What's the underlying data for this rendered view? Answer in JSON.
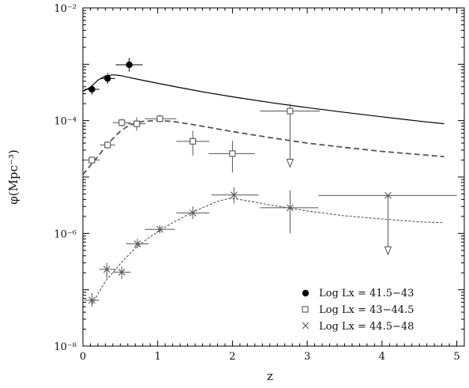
{
  "chart_data": {
    "type": "scatter",
    "title": "",
    "xlabel": "z",
    "ylabel": "φ(Mpc⁻³)",
    "xlim": [
      0,
      5.1
    ],
    "ylim_log10": [
      -8,
      -2
    ],
    "y_scale": "log",
    "x_ticks": [
      "0",
      "1",
      "2",
      "3",
      "4",
      "5"
    ],
    "y_ticks": [
      {
        "exp": -2,
        "text": "10⁻²"
      },
      {
        "exp": -4,
        "text": "10⁻⁴"
      },
      {
        "exp": -6,
        "text": "10⁻⁶"
      },
      {
        "exp": -8,
        "text": "10⁻⁸"
      }
    ],
    "legend_position": "bottom-right",
    "series": [
      {
        "name": "Log Lx = 41.5−43",
        "marker": "filled-circle",
        "color": "#000000",
        "points": [
          {
            "x": 0.12,
            "xerr": [
              0.1,
              0.1
            ],
            "y": 0.00036,
            "yerr": [
              0.00029,
              0.00043
            ]
          },
          {
            "x": 0.33,
            "xerr": [
              0.1,
              0.1
            ],
            "y": 0.00056,
            "yerr": [
              0.00045,
              0.00069
            ]
          },
          {
            "x": 0.62,
            "xerr": [
              0.18,
              0.18
            ],
            "y": 0.00098,
            "yerr": [
              0.00074,
              0.0013
            ]
          }
        ],
        "model": {
          "style": "solid",
          "x": [
            0,
            0.1,
            0.2,
            0.3,
            0.4,
            0.5,
            0.6,
            0.8,
            1.0,
            1.3,
            1.6,
            2.0,
            2.5,
            3.0,
            3.5,
            4.0,
            4.5,
            4.83
          ],
          "y": [
            0.00033,
            0.00039,
            0.00052,
            0.00062,
            0.00065,
            0.00063,
            0.00059,
            0.00052,
            0.00046,
            0.000385,
            0.000325,
            0.000265,
            0.00021,
            0.00017,
            0.00014,
            0.000117,
            9.8e-05,
            8.8e-05
          ]
        }
      },
      {
        "name": "Log Lx = 43−44.5",
        "marker": "open-square",
        "color": "#555555",
        "points": [
          {
            "x": 0.12,
            "xerr": [
              0.1,
              0.1
            ],
            "y": 2e-05,
            "yerr": [
              1.75e-05,
              2.3e-05
            ]
          },
          {
            "x": 0.33,
            "xerr": [
              0.1,
              0.1
            ],
            "y": 3.7e-05,
            "yerr": [
              3.2e-05,
              4.3e-05
            ]
          },
          {
            "x": 0.52,
            "xerr": [
              0.12,
              0.12
            ],
            "y": 9.2e-05,
            "yerr": [
              7.8e-05,
              0.000108
            ]
          },
          {
            "x": 0.72,
            "xerr": [
              0.12,
              0.12
            ],
            "y": 8.8e-05,
            "yerr": [
              6.6e-05,
              0.000115
            ]
          },
          {
            "x": 1.03,
            "xerr": [
              0.2,
              0.22
            ],
            "y": 0.000108,
            "yerr": [
              9.3e-05,
              0.000127
            ]
          },
          {
            "x": 1.47,
            "xerr": [
              0.22,
              0.22
            ],
            "y": 4.3e-05,
            "yerr": [
              2.4e-05,
              6.6e-05
            ]
          },
          {
            "x": 2.0,
            "xerr": [
              0.32,
              0.3
            ],
            "y": 2.6e-05,
            "yerr": [
              1.2e-05,
              4.4e-05
            ]
          },
          {
            "x": 2.77,
            "xerr": [
              0.4,
              0.4
            ],
            "y": 0.000148,
            "yerr": [
              null,
              0.0002
            ],
            "upper_limit": true,
            "arrow_to": 1.5e-05
          }
        ],
        "model": {
          "style": "dashed",
          "x": [
            0,
            0.1,
            0.2,
            0.3,
            0.4,
            0.5,
            0.6,
            0.7,
            0.8,
            1.0,
            1.2,
            1.5,
            2.0,
            2.5,
            3.0,
            3.5,
            4.0,
            4.5,
            4.83
          ],
          "y": [
            1.1e-05,
            1.6e-05,
            2.3e-05,
            3.4e-05,
            4.8e-05,
            6.5e-05,
            8e-05,
            9e-05,
            9.7e-05,
            0.000101,
            9.7e-05,
            8.4e-05,
            6.4e-05,
            5e-05,
            4e-05,
            3.35e-05,
            2.85e-05,
            2.5e-05,
            2.3e-05
          ]
        }
      },
      {
        "name": "Log Lx = 44.5−48",
        "marker": "cross",
        "color": "#555555",
        "points": [
          {
            "x": 0.12,
            "xerr": [
              0.1,
              0.1
            ],
            "y": 6.5e-08,
            "yerr": [
              5e-08,
              8.8e-08
            ]
          },
          {
            "x": 0.32,
            "xerr": [
              0.1,
              0.12
            ],
            "y": 2.3e-07,
            "yerr": [
              1.6e-07,
              3e-07
            ]
          },
          {
            "x": 0.52,
            "xerr": [
              0.12,
              0.12
            ],
            "y": 2.05e-07,
            "yerr": [
              1.55e-07,
              2.6e-07
            ]
          },
          {
            "x": 0.73,
            "xerr": [
              0.15,
              0.15
            ],
            "y": 6.5e-07,
            "yerr": [
              5.4e-07,
              8e-07
            ]
          },
          {
            "x": 1.03,
            "xerr": [
              0.2,
              0.2
            ],
            "y": 1.18e-06,
            "yerr": [
              1e-06,
              1.4e-06
            ]
          },
          {
            "x": 1.47,
            "xerr": [
              0.22,
              0.22
            ],
            "y": 2.3e-06,
            "yerr": [
              1.8e-06,
              3e-06
            ]
          },
          {
            "x": 2.02,
            "xerr": [
              0.3,
              0.33
            ],
            "y": 4.8e-06,
            "yerr": [
              3.4e-06,
              6.6e-06
            ]
          },
          {
            "x": 2.77,
            "xerr": [
              0.4,
              0.38
            ],
            "y": 2.85e-06,
            "yerr": [
              1e-06,
              5.8e-06
            ]
          },
          {
            "x": 4.08,
            "xerr": [
              0.93,
              0.92
            ],
            "y": 4.7e-06,
            "yerr": [
              null,
              null
            ],
            "upper_limit": true,
            "arrow_to": 4.2e-07
          }
        ],
        "model": {
          "style": "dotted",
          "x": [
            0.12,
            0.3,
            0.5,
            0.7,
            0.9,
            1.2,
            1.5,
            1.8,
            1.95,
            2.05,
            2.5,
            3.0,
            3.5,
            4.0,
            4.5,
            4.83
          ],
          "y": [
            5.5e-08,
            1.4e-07,
            2.9e-07,
            5.5e-07,
            8.7e-07,
            1.55e-06,
            2.5e-06,
            3.7e-06,
            4.15e-06,
            4.1e-06,
            3.2e-06,
            2.5e-06,
            2.05e-06,
            1.8e-06,
            1.6e-06,
            1.55e-06
          ]
        }
      }
    ]
  }
}
